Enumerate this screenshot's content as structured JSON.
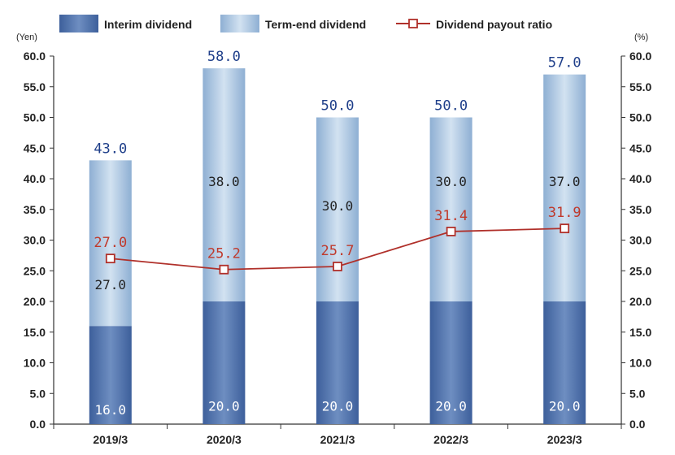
{
  "legend": {
    "interim": "Interim dividend",
    "term_end": "Term-end dividend",
    "ratio": "Dividend payout ratio"
  },
  "axes": {
    "left_unit": "(Yen)",
    "right_unit": "(%)"
  },
  "colors": {
    "interim_dark": "#3b5f9c",
    "interim_light": "#6f8fc2",
    "term_dark": "#8fb0d3",
    "term_light": "#c9dbee",
    "ratio_line": "#b0302a",
    "total_text": "#1f3f8a",
    "axis": "#333333"
  },
  "chart_data": {
    "type": "bar",
    "categories": [
      "2019/3",
      "2020/3",
      "2021/3",
      "2022/3",
      "2023/3"
    ],
    "series": [
      {
        "name": "Interim dividend",
        "values": [
          16.0,
          20.0,
          20.0,
          20.0,
          20.0
        ],
        "labels": [
          "16.0",
          "20.0",
          "20.0",
          "20.0",
          "20.0"
        ]
      },
      {
        "name": "Term-end dividend",
        "values": [
          27.0,
          38.0,
          30.0,
          30.0,
          37.0
        ],
        "labels": [
          "27.0",
          "38.0",
          "30.0",
          "30.0",
          "37.0"
        ]
      }
    ],
    "totals": [
      "43.0",
      "58.0",
      "50.0",
      "50.0",
      "57.0"
    ],
    "line_series": {
      "name": "Dividend payout ratio",
      "values": [
        27.0,
        25.2,
        25.7,
        31.4,
        31.9
      ],
      "labels": [
        "27.0",
        "25.2",
        "25.7",
        "31.4",
        "31.9"
      ]
    },
    "ylim": [
      0,
      60
    ],
    "y2lim": [
      0,
      60
    ],
    "yticks": [
      "0.0",
      "5.0",
      "10.0",
      "15.0",
      "20.0",
      "25.0",
      "30.0",
      "35.0",
      "40.0",
      "45.0",
      "50.0",
      "55.0",
      "60.0"
    ],
    "stacked": true,
    "grid": false,
    "legend_position": "top"
  }
}
